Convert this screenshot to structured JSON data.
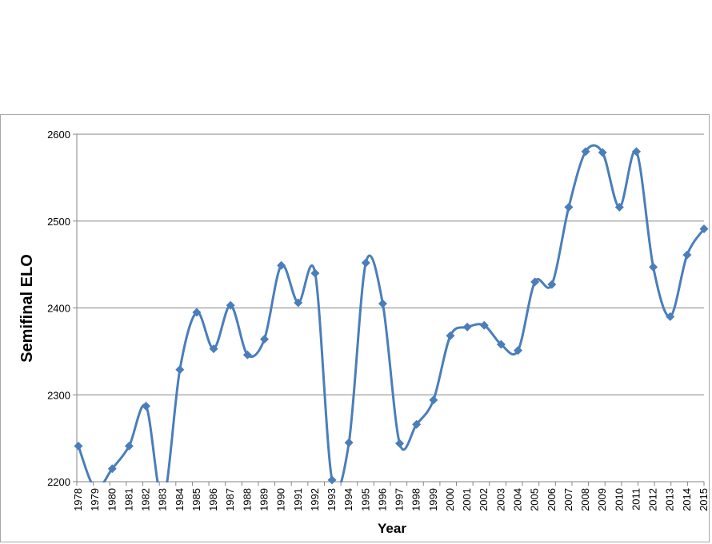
{
  "chart_data": {
    "type": "line",
    "xlabel": "Year",
    "ylabel": "Semifinal ELO",
    "ylim": [
      2200,
      2600
    ],
    "yticks": [
      2200,
      2300,
      2400,
      2500,
      2600
    ],
    "grid": true,
    "smooth": true,
    "marker": "diamond",
    "color": "#4a7ebb",
    "categories": [
      "1978",
      "1979",
      "1980",
      "1981",
      "1982",
      "1983",
      "1984",
      "1985",
      "1986",
      "1987",
      "1988",
      "1989",
      "1990",
      "1991",
      "1992",
      "1993",
      "1994",
      "1995",
      "1996",
      "1997",
      "1998",
      "1999",
      "2000",
      "2001",
      "2002",
      "2003",
      "2004",
      "2005",
      "2006",
      "2007",
      "2008",
      "2009",
      "2010",
      "2011",
      "2012",
      "2013",
      "2014",
      "2015"
    ],
    "values": [
      2241,
      2192,
      2215,
      2241,
      2287,
      2178,
      2329,
      2395,
      2353,
      2403,
      2346,
      2364,
      2449,
      2406,
      2440,
      2202,
      2245,
      2452,
      2405,
      2244,
      2266,
      2294,
      2368,
      2378,
      2380,
      2358,
      2351,
      2430,
      2427,
      2516,
      2580,
      2579,
      2516,
      2580,
      2447,
      2390,
      2461,
      2491
    ]
  }
}
